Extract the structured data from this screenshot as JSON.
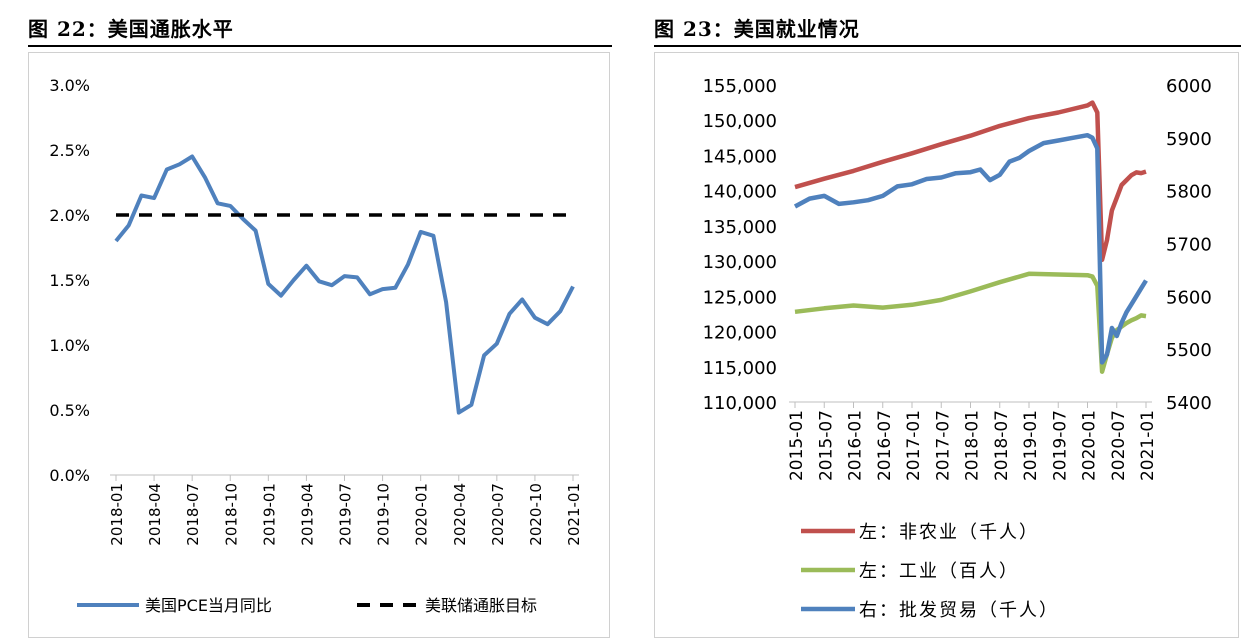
{
  "figures": {
    "left_title": "图 22：美国通胀水平",
    "right_title": "图 23：美国就业情况"
  },
  "chart_data": [
    {
      "type": "line",
      "title": "图 22：美国通胀水平",
      "x": [
        "2018-01",
        "2018-02",
        "2018-03",
        "2018-04",
        "2018-05",
        "2018-06",
        "2018-07",
        "2018-08",
        "2018-09",
        "2018-10",
        "2018-11",
        "2018-12",
        "2019-01",
        "2019-02",
        "2019-03",
        "2019-04",
        "2019-05",
        "2019-06",
        "2019-07",
        "2019-08",
        "2019-09",
        "2019-10",
        "2019-11",
        "2019-12",
        "2020-01",
        "2020-02",
        "2020-03",
        "2020-04",
        "2020-05",
        "2020-06",
        "2020-07",
        "2020-08",
        "2020-09",
        "2020-10",
        "2020-11",
        "2020-12",
        "2021-01"
      ],
      "x_tick_labels": [
        "2018-01",
        "2018-04",
        "2018-07",
        "2018-10",
        "2019-01",
        "2019-04",
        "2019-07",
        "2019-10",
        "2020-01",
        "2020-04",
        "2020-07",
        "2020-10",
        "2021-01"
      ],
      "ylim": [
        0,
        3.0
      ],
      "y_tick_labels": [
        "0.0%",
        "0.5%",
        "1.0%",
        "1.5%",
        "2.0%",
        "2.5%",
        "3.0%"
      ],
      "grid": false,
      "legend_position": "bottom",
      "series": [
        {
          "name": "美国PCE当月同比",
          "color": "#4f81bd",
          "style": "solid",
          "values": [
            1.8,
            1.92,
            2.15,
            2.13,
            2.35,
            2.39,
            2.45,
            2.29,
            2.09,
            2.07,
            1.97,
            1.88,
            1.47,
            1.38,
            1.5,
            1.61,
            1.49,
            1.46,
            1.53,
            1.52,
            1.39,
            1.43,
            1.44,
            1.62,
            1.87,
            1.84,
            1.33,
            0.48,
            0.54,
            0.92,
            1.01,
            1.24,
            1.35,
            1.21,
            1.16,
            1.26,
            1.45
          ]
        },
        {
          "name": "美联储通胀目标",
          "color": "#000000",
          "style": "dashed",
          "values": [
            2.0,
            2.0,
            2.0,
            2.0,
            2.0,
            2.0,
            2.0,
            2.0,
            2.0,
            2.0,
            2.0,
            2.0,
            2.0,
            2.0,
            2.0,
            2.0,
            2.0,
            2.0,
            2.0,
            2.0,
            2.0,
            2.0,
            2.0,
            2.0,
            2.0,
            2.0,
            2.0,
            2.0,
            2.0,
            2.0,
            2.0,
            2.0,
            2.0,
            2.0,
            2.0,
            2.0,
            2.0
          ]
        }
      ]
    },
    {
      "type": "line",
      "title": "图 23：美国就业情况",
      "x_range": [
        "2015-01",
        "2021-01"
      ],
      "x_tick_labels": [
        "2015-01",
        "2015-07",
        "2016-01",
        "2016-07",
        "2017-01",
        "2017-07",
        "2018-01",
        "2018-07",
        "2019-01",
        "2019-07",
        "2020-01",
        "2020-07",
        "2021-01"
      ],
      "ylim_left": [
        110000,
        155000
      ],
      "y_tick_labels_left": [
        "110,000",
        "115,000",
        "120,000",
        "125,000",
        "130,000",
        "135,000",
        "140,000",
        "145,000",
        "150,000",
        "155,000"
      ],
      "ylim_right": [
        5400,
        6000
      ],
      "y_tick_labels_right": [
        "5400",
        "5500",
        "5600",
        "5700",
        "5800",
        "5900",
        "6000"
      ],
      "grid": false,
      "legend_position": "bottom",
      "series": [
        {
          "name": "左：非农业（千人）",
          "axis": "left",
          "color": "#c0504d",
          "points": [
            [
              "2015-01",
              140500
            ],
            [
              "2015-07",
              141700
            ],
            [
              "2016-01",
              142800
            ],
            [
              "2016-07",
              144100
            ],
            [
              "2017-01",
              145300
            ],
            [
              "2017-07",
              146600
            ],
            [
              "2018-01",
              147800
            ],
            [
              "2018-07",
              149200
            ],
            [
              "2019-01",
              150300
            ],
            [
              "2019-07",
              151100
            ],
            [
              "2020-01",
              152100
            ],
            [
              "2020-02",
              152500
            ],
            [
              "2020-03",
              151100
            ],
            [
              "2020-04",
              130200
            ],
            [
              "2020-05",
              133000
            ],
            [
              "2020-06",
              137200
            ],
            [
              "2020-07",
              139000
            ],
            [
              "2020-08",
              140800
            ],
            [
              "2020-09",
              141500
            ],
            [
              "2020-10",
              142200
            ],
            [
              "2020-11",
              142600
            ],
            [
              "2020-12",
              142500
            ],
            [
              "2021-01",
              142700
            ]
          ]
        },
        {
          "name": "左：工业（百人）",
          "axis": "left",
          "color": "#9bbb59",
          "points": [
            [
              "2015-01",
              122800
            ],
            [
              "2015-07",
              123300
            ],
            [
              "2016-01",
              123700
            ],
            [
              "2016-07",
              123400
            ],
            [
              "2017-01",
              123800
            ],
            [
              "2017-07",
              124500
            ],
            [
              "2018-01",
              125700
            ],
            [
              "2018-07",
              127000
            ],
            [
              "2019-01",
              128200
            ],
            [
              "2019-07",
              128100
            ],
            [
              "2020-01",
              128000
            ],
            [
              "2020-02",
              127800
            ],
            [
              "2020-03",
              126500
            ],
            [
              "2020-04",
              114300
            ],
            [
              "2020-05",
              116800
            ],
            [
              "2020-06",
              119100
            ],
            [
              "2020-07",
              120200
            ],
            [
              "2020-08",
              120700
            ],
            [
              "2020-09",
              121200
            ],
            [
              "2020-10",
              121600
            ],
            [
              "2020-11",
              121900
            ],
            [
              "2020-12",
              122300
            ],
            [
              "2021-01",
              122200
            ]
          ]
        },
        {
          "name": "右：批发贸易（千人）",
          "axis": "right",
          "color": "#4f81bd",
          "points": [
            [
              "2015-01",
              5770
            ],
            [
              "2015-04",
              5785
            ],
            [
              "2015-07",
              5790
            ],
            [
              "2015-10",
              5775
            ],
            [
              "2016-01",
              5778
            ],
            [
              "2016-04",
              5782
            ],
            [
              "2016-07",
              5790
            ],
            [
              "2016-10",
              5808
            ],
            [
              "2017-01",
              5812
            ],
            [
              "2017-04",
              5822
            ],
            [
              "2017-07",
              5825
            ],
            [
              "2017-10",
              5833
            ],
            [
              "2018-01",
              5835
            ],
            [
              "2018-03",
              5840
            ],
            [
              "2018-05",
              5820
            ],
            [
              "2018-07",
              5830
            ],
            [
              "2018-09",
              5855
            ],
            [
              "2018-11",
              5862
            ],
            [
              "2019-01",
              5875
            ],
            [
              "2019-04",
              5890
            ],
            [
              "2019-07",
              5895
            ],
            [
              "2019-10",
              5900
            ],
            [
              "2020-01",
              5905
            ],
            [
              "2020-02",
              5900
            ],
            [
              "2020-03",
              5880
            ],
            [
              "2020-04",
              5475
            ],
            [
              "2020-05",
              5490
            ],
            [
              "2020-06",
              5540
            ],
            [
              "2020-07",
              5525
            ],
            [
              "2020-08",
              5550
            ],
            [
              "2020-09",
              5570
            ],
            [
              "2020-10",
              5585
            ],
            [
              "2020-11",
              5600
            ],
            [
              "2020-12",
              5615
            ],
            [
              "2021-01",
              5630
            ]
          ]
        }
      ]
    }
  ]
}
